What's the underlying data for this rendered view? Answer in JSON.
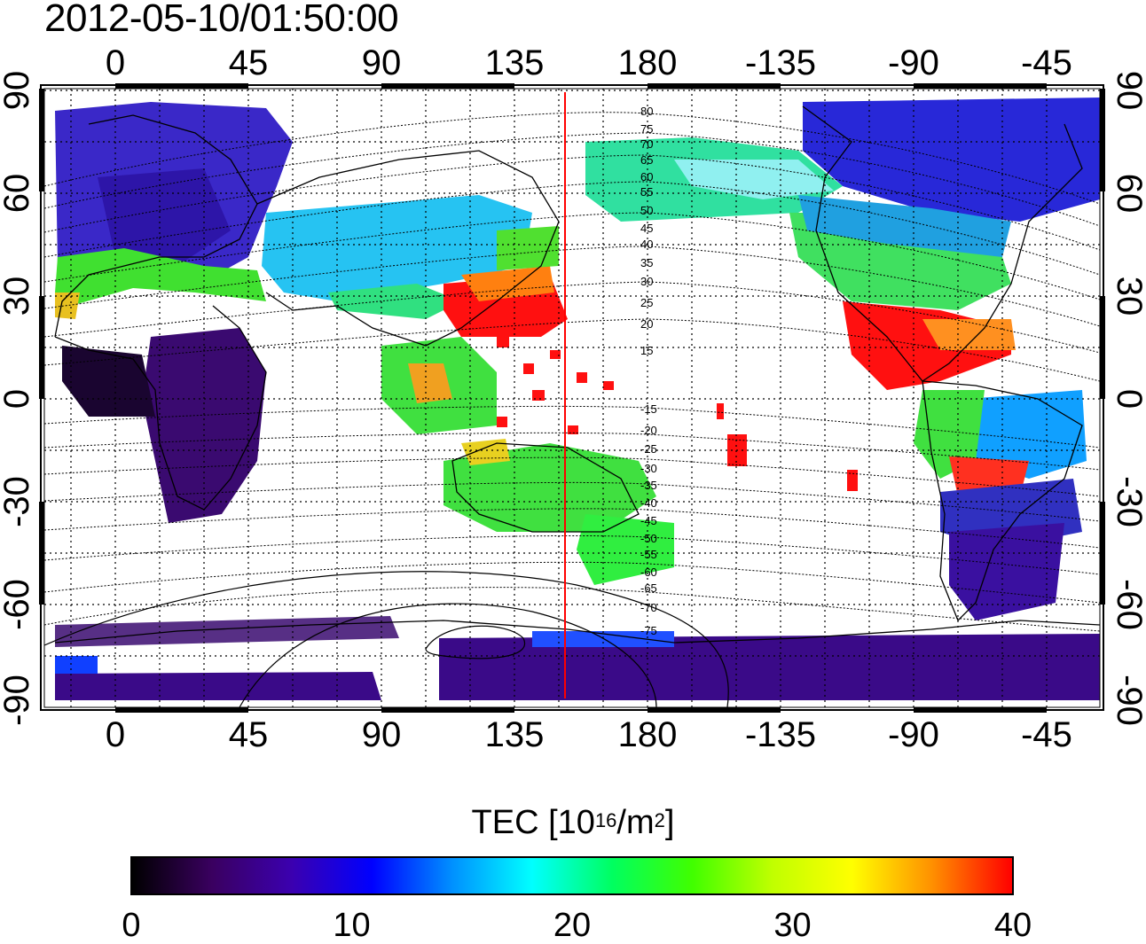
{
  "title": "2012-05-10/01:50:00",
  "map": {
    "top_lon_labels": [
      "0",
      "45",
      "90",
      "135",
      "180",
      "-135",
      "-90",
      "-45"
    ],
    "bottom_lon_labels": [
      "0",
      "45",
      "90",
      "135",
      "180",
      "-135",
      "-90",
      "-45"
    ],
    "left_lat_labels": [
      "90",
      "60",
      "30",
      "0",
      "-30",
      "-60",
      "-90"
    ],
    "right_lat_labels": [
      "90",
      "60",
      "30",
      "0",
      "-30",
      "-60",
      "-90"
    ],
    "red_line_longitude": 152,
    "magnetic_latitude_labels": [
      "80",
      "75",
      "70",
      "65",
      "60",
      "55",
      "50",
      "45",
      "40",
      "35",
      "30",
      "25",
      "20",
      "15",
      "-15",
      "-20",
      "-25",
      "-30",
      "-35",
      "-40",
      "-45",
      "-50",
      "-55",
      "-60",
      "-65",
      "-70",
      "-75"
    ]
  },
  "colorbar": {
    "label_prefix": "TEC  [10",
    "label_exp": "16",
    "label_mid": "/m",
    "label_exp2": "2",
    "label_suffix": "]",
    "ticks": [
      "0",
      "10",
      "20",
      "30",
      "40"
    ],
    "colors": [
      "#000000",
      "#3a0060",
      "#3b00b0",
      "#0000ff",
      "#0090ff",
      "#00ffff",
      "#00ff60",
      "#40ff00",
      "#c0ff00",
      "#ffff00",
      "#ff9000",
      "#ff0000"
    ]
  }
}
